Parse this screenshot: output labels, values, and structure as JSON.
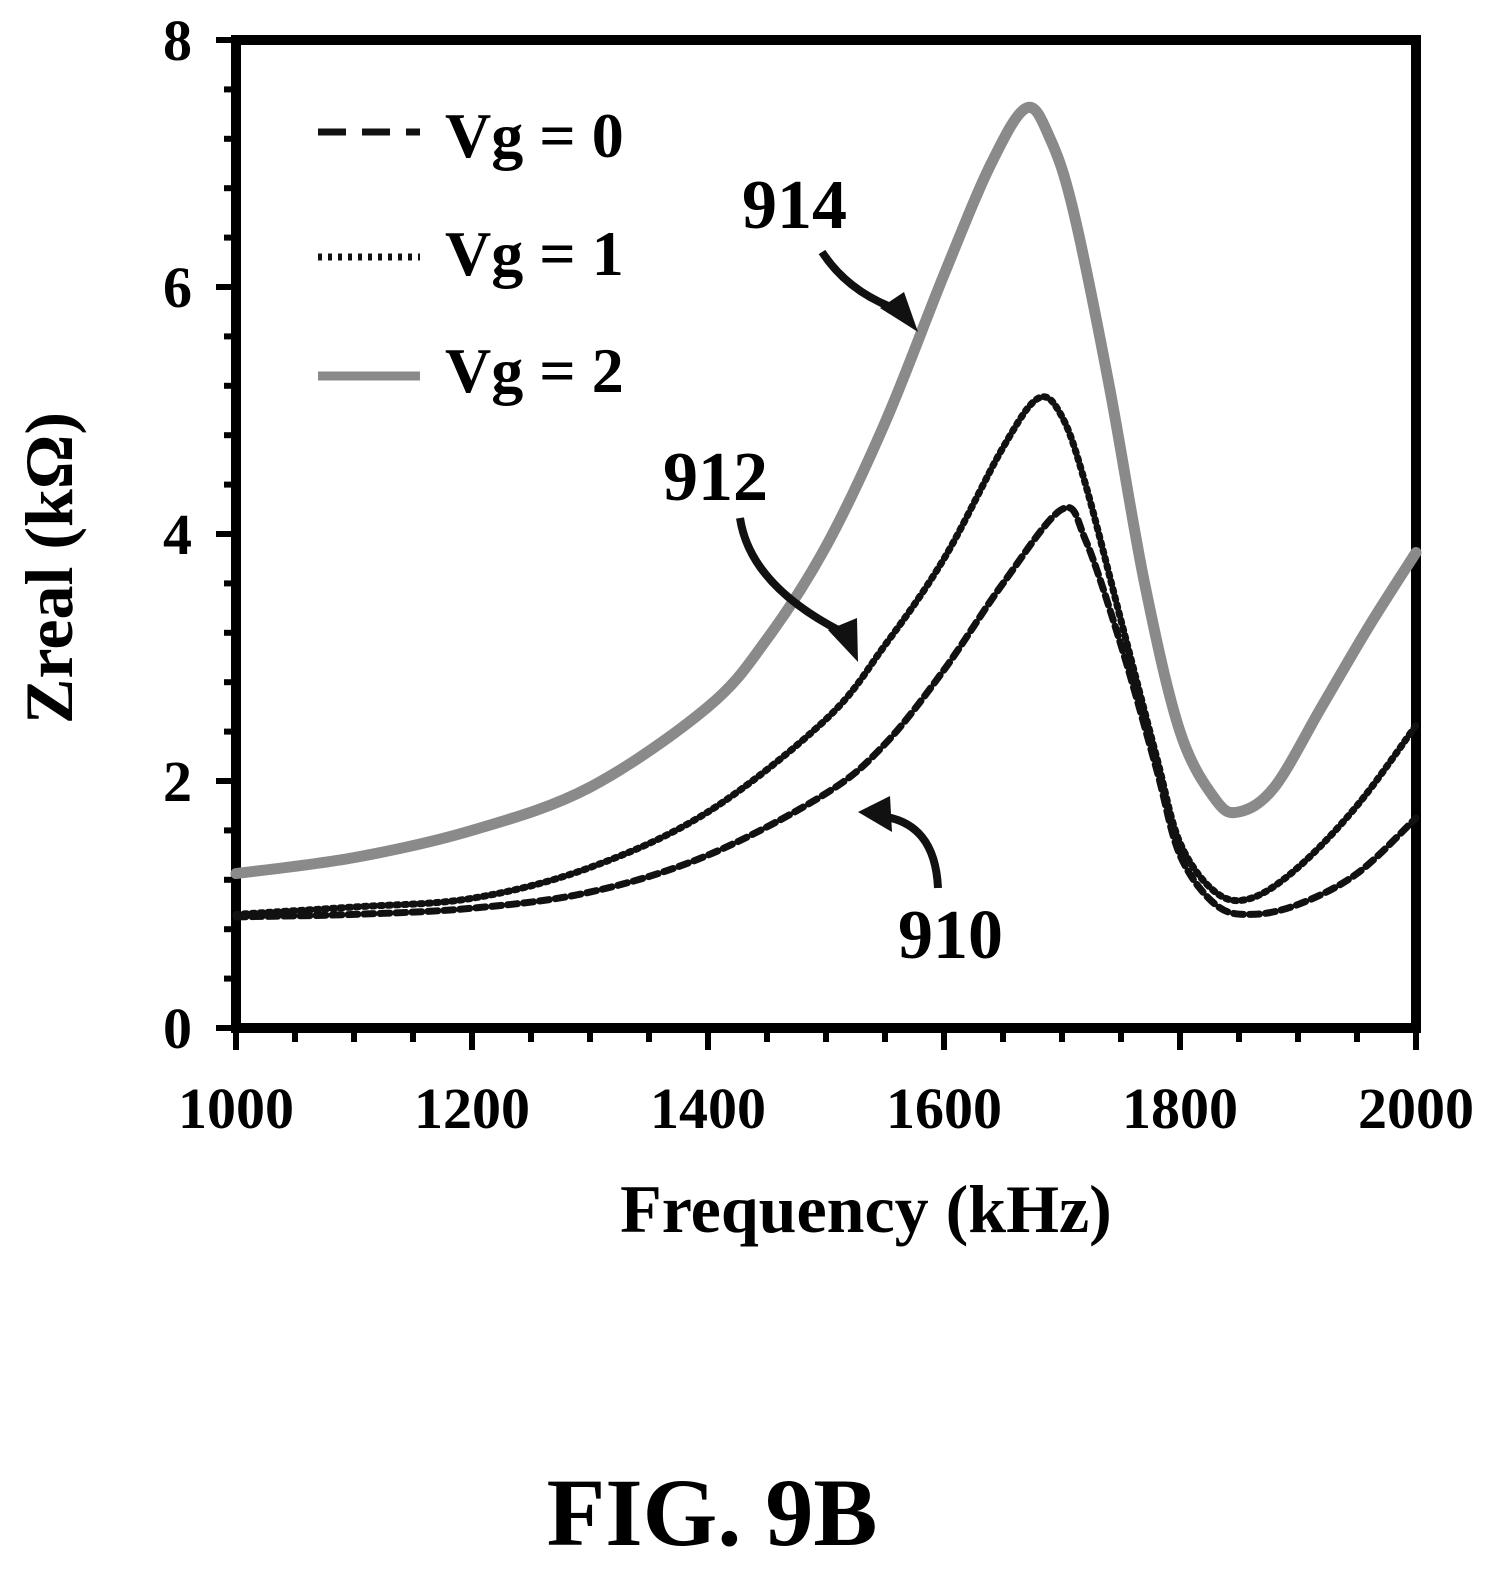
{
  "chart_data": {
    "type": "line",
    "xlabel": "Frequency (kHz)",
    "ylabel": "Zreal (kΩ)",
    "xlim": [
      1000,
      2000
    ],
    "ylim": [
      0,
      8
    ],
    "x_ticks": [
      "1000",
      "1200",
      "1400",
      "1600",
      "1800",
      "2000"
    ],
    "y_ticks": [
      "0",
      "2",
      "4",
      "6",
      "8"
    ],
    "grid": false,
    "legend_position": "top-left",
    "series": [
      {
        "name": "Vg = 0",
        "style": "dashed",
        "color": "#111111",
        "x": [
          1000,
          1100,
          1200,
          1300,
          1400,
          1500,
          1550,
          1600,
          1650,
          1700,
          1720,
          1750,
          1780,
          1800,
          1830,
          1860,
          1900,
          1950,
          2000
        ],
        "y": [
          0.9,
          0.92,
          0.97,
          1.1,
          1.4,
          1.9,
          2.3,
          2.9,
          3.6,
          4.2,
          3.95,
          3.1,
          2.1,
          1.4,
          1.0,
          0.92,
          1.0,
          1.25,
          1.7
        ]
      },
      {
        "name": "Vg = 1",
        "style": "dotted",
        "color": "#111111",
        "x": [
          1000,
          1100,
          1200,
          1300,
          1400,
          1500,
          1550,
          1600,
          1650,
          1680,
          1700,
          1720,
          1750,
          1780,
          1800,
          1830,
          1860,
          1900,
          1950,
          2000
        ],
        "y": [
          0.92,
          0.98,
          1.05,
          1.3,
          1.75,
          2.5,
          3.1,
          3.8,
          4.7,
          5.1,
          4.95,
          4.4,
          3.3,
          2.2,
          1.5,
          1.1,
          1.05,
          1.3,
          1.8,
          2.45
        ]
      },
      {
        "name": "Vg = 2",
        "style": "solid",
        "color": "#8a8a8a",
        "x": [
          1000,
          1100,
          1200,
          1300,
          1400,
          1450,
          1500,
          1550,
          1600,
          1640,
          1670,
          1690,
          1710,
          1740,
          1770,
          1800,
          1830,
          1850,
          1880,
          1920,
          1960,
          2000
        ],
        "y": [
          1.25,
          1.38,
          1.6,
          1.95,
          2.6,
          3.15,
          3.9,
          4.9,
          6.1,
          7.0,
          7.45,
          7.2,
          6.6,
          5.2,
          3.6,
          2.4,
          1.85,
          1.75,
          1.95,
          2.6,
          3.25,
          3.85
        ]
      }
    ],
    "annotations": [
      "914",
      "912",
      "910"
    ]
  },
  "figure_label": "FIG. 9B"
}
